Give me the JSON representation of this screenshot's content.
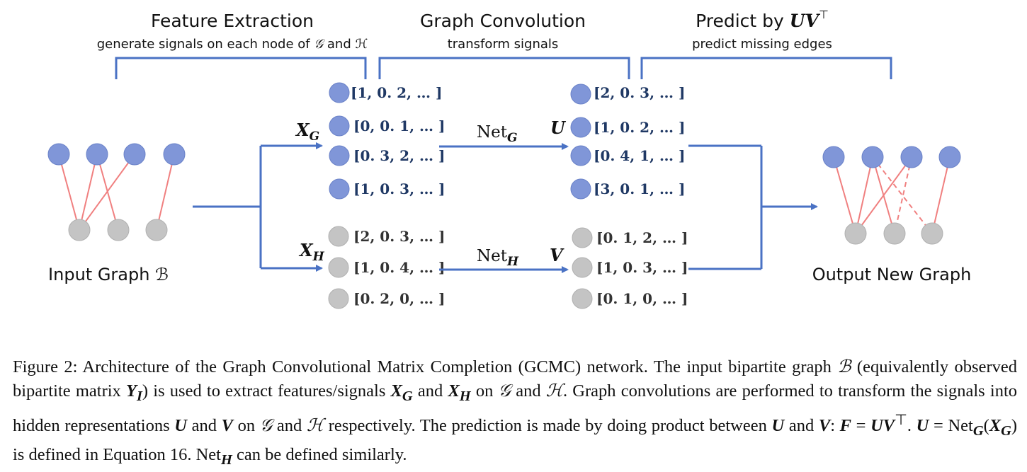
{
  "sections": {
    "feature": {
      "title": "Feature Extraction",
      "subtitle_pre": "generate signals on each node of ",
      "subtitle_g": "𝒢",
      "subtitle_and": " and ",
      "subtitle_h": "ℋ"
    },
    "conv": {
      "title": "Graph Convolution",
      "subtitle": "transform signals"
    },
    "predict": {
      "title_pre": "Predict by ",
      "title_math": "UV",
      "title_sup": "⊤",
      "subtitle": "predict missing edges"
    }
  },
  "graphs": {
    "input_label": "Input Graph ℬ",
    "output_label": "Output New Graph"
  },
  "matrices": {
    "xg": "X",
    "xg_sub": "G",
    "xh": "X",
    "xh_sub": "H",
    "u": "U",
    "v": "V"
  },
  "nets": {
    "g": "Net",
    "g_sub": "G",
    "h": "Net",
    "h_sub": "H"
  },
  "vectors": {
    "xg": [
      "[1, 0. 2, … ]",
      "[0, 0. 1, … ]",
      "[0. 3, 2, … ]",
      "[1, 0. 3, … ]"
    ],
    "xh": [
      "[2, 0. 3, … ]",
      "[1, 0. 4, … ]",
      "[0. 2, 0, … ]"
    ],
    "u": [
      "[2, 0. 3, … ]",
      "[1, 0. 2, … ]",
      "[0. 4, 1, … ]",
      "[3, 0. 1, … ]"
    ],
    "v": [
      "[0. 1, 2, … ]",
      "[1, 0. 3, … ]",
      "[0. 1, 0, … ]"
    ]
  },
  "caption": {
    "figure": "Figure 2:",
    "s1": " Architecture of the Graph Convolutional Matrix Completion (GCMC) network. The input bipartite graph ",
    "B": "ℬ",
    "s2": " (equivalently observed bipartite matrix ",
    "YI": "Y",
    "YI_sub": "I",
    "s3": ") is used to extract features/signals ",
    "XG": "X",
    "XG_sub": "G",
    "and1": " and ",
    "XH": "X",
    "XH_sub": "H",
    "on1": " on ",
    "G1": "𝒢",
    "and2": " and ",
    "H1": "ℋ",
    "s4": ". Graph convolutions are performed to transform the signals into hidden representations ",
    "U1": "U",
    "and3": " and ",
    "V1": "V",
    "on2": " on ",
    "G2": "𝒢",
    "and4": " and ",
    "H2": "ℋ",
    "s5": " respectively. The prediction is made by doing product between ",
    "U2": "U",
    "and5": " and ",
    "V2": "V",
    "colon": ": ",
    "F": "F",
    "eq1": " = ",
    "UV": "UV",
    "top": "⊤",
    "dot": ". ",
    "U3": "U",
    "eq2": " = Net",
    "netsubG": "G",
    "paren_open": "(",
    "XG2": "X",
    "XG2_sub": "G",
    "s6": ") is defined in Equation 16. Net",
    "netsubH": "H",
    "s7": " can be defined similarly."
  },
  "colors": {
    "blue_node": "#8096d8",
    "gray_node": "#c4c4c4",
    "edge": "#f08080",
    "arrow": "#4a72c4"
  }
}
